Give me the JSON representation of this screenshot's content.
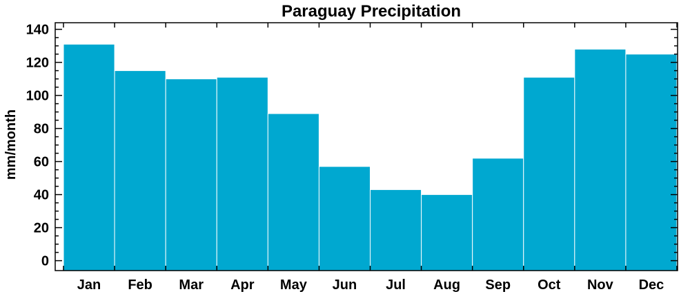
{
  "chart_data": {
    "type": "bar",
    "title": "Paraguay Precipitation",
    "xlabel": "",
    "ylabel": "mm/month",
    "categories": [
      "Jan",
      "Feb",
      "Mar",
      "Apr",
      "May",
      "Jun",
      "Jul",
      "Aug",
      "Sep",
      "Oct",
      "Nov",
      "Dec"
    ],
    "values": [
      131,
      115,
      110,
      111,
      89,
      57,
      43,
      40,
      62,
      111,
      128,
      125
    ],
    "ylim": [
      -6,
      144
    ],
    "yticks": [
      0,
      20,
      40,
      60,
      80,
      100,
      120,
      140
    ],
    "yminor_step": 5,
    "bar_color": "#00A8D0",
    "grid": false
  }
}
